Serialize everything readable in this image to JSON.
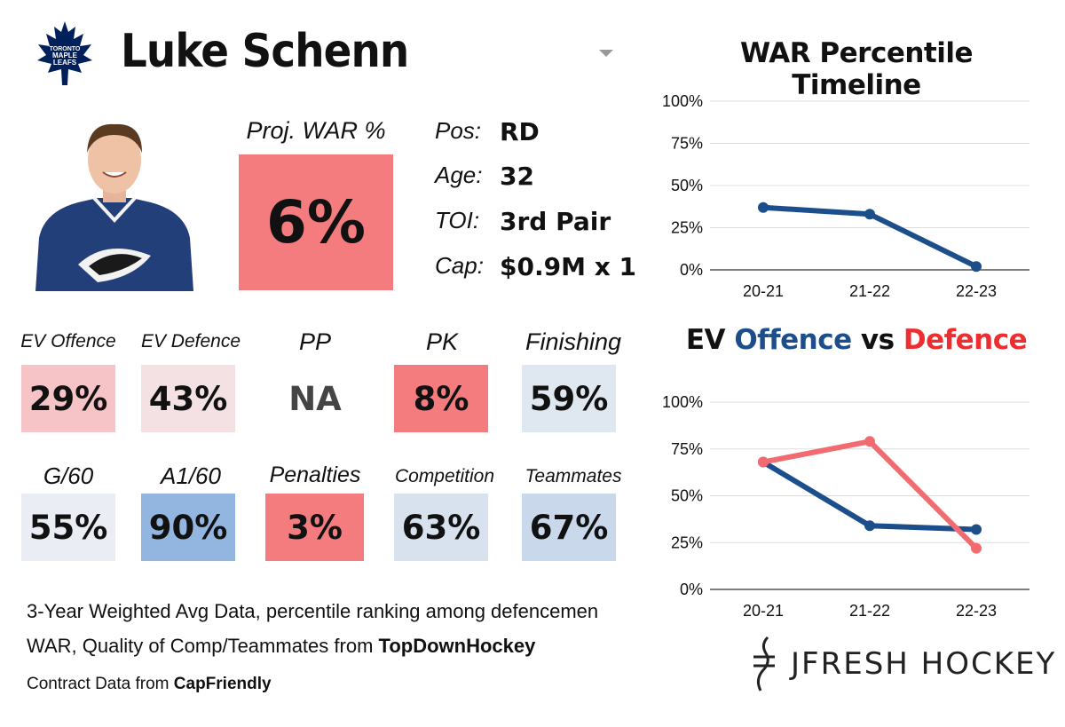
{
  "header": {
    "player_name": "Luke Schenn",
    "team_logo_text": [
      "TORONTO",
      "MAPLE",
      "LEAFS"
    ]
  },
  "projection": {
    "label": "Proj. WAR %",
    "value": "6%",
    "color": "#f47c7f"
  },
  "info": [
    {
      "label": "Pos:",
      "value": "RD"
    },
    {
      "label": "Age:",
      "value": "32"
    },
    {
      "label": "TOI:",
      "value": "3rd Pair"
    },
    {
      "label": "Cap:",
      "value": "$0.9M x 1"
    }
  ],
  "stats": [
    {
      "label": "EV Offence",
      "value": "29%",
      "color": "#f6c4c6"
    },
    {
      "label": "EV Defence",
      "value": "43%",
      "color": "#f3e1e3"
    },
    {
      "label": "PP",
      "value": "NA",
      "color": "#ffffff"
    },
    {
      "label": "PK",
      "value": "8%",
      "color": "#f47c7f"
    },
    {
      "label": "Finishing",
      "value": "59%",
      "color": "#dfe7f0"
    },
    {
      "label": "G/60",
      "value": "55%",
      "color": "#eaeef4"
    },
    {
      "label": "A1/60",
      "value": "90%",
      "color": "#93b6e0"
    },
    {
      "label": "Penalties",
      "value": "3%",
      "color": "#f47c7f"
    },
    {
      "label": "Competition",
      "value": "63%",
      "color": "#d7e2ee"
    },
    {
      "label": "Teammates",
      "value": "67%",
      "color": "#c9d9eb"
    }
  ],
  "footer": {
    "line1": "3-Year Weighted Avg Data, percentile ranking among defencemen",
    "line2_prefix": "WAR, Quality of Comp/Teammates from ",
    "line2_source": "TopDownHockey",
    "line3_prefix": "Contract Data from ",
    "line3_source": "CapFriendly"
  },
  "brand": {
    "text": "JFRESH HOCKEY"
  },
  "chart_data": [
    {
      "type": "line",
      "title": "WAR Percentile Timeline",
      "categories": [
        "20-21",
        "21-22",
        "22-23"
      ],
      "series": [
        {
          "values": [
            37,
            33,
            2
          ],
          "color": "#1c4e8c"
        }
      ],
      "ylim": [
        0,
        100
      ],
      "yticks": [
        "0%",
        "25%",
        "50%",
        "75%",
        "100%"
      ],
      "grid": true
    },
    {
      "type": "line",
      "title_parts": [
        {
          "text": "EV ",
          "color": "#111111"
        },
        {
          "text": "Offence",
          "color": "#1c4e8c"
        },
        {
          "text": " vs ",
          "color": "#111111"
        },
        {
          "text": "Defence",
          "color": "#ee2d30"
        }
      ],
      "categories": [
        "20-21",
        "21-22",
        "22-23"
      ],
      "series": [
        {
          "values": [
            68,
            34,
            32
          ],
          "color": "#1c4e8c"
        },
        {
          "values": [
            68,
            79,
            22
          ],
          "color": "#f16b70"
        }
      ],
      "ylim": [
        0,
        100
      ],
      "yticks": [
        "0%",
        "25%",
        "50%",
        "75%",
        "100%"
      ],
      "grid": true
    }
  ]
}
